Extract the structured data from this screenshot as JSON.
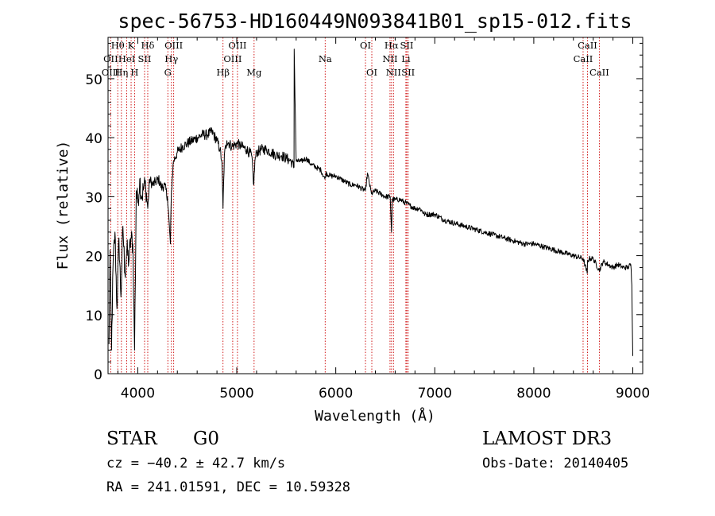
{
  "chart_data": {
    "type": "line",
    "title": "spec-56753-HD160449N093841B01_sp15-012.fits",
    "xlabel": "Wavelength (Å)",
    "ylabel": "Flux (relative)",
    "xlim": [
      3700,
      9100
    ],
    "ylim": [
      0,
      57
    ],
    "x_ticks": [
      4000,
      5000,
      6000,
      7000,
      8000,
      9000
    ],
    "x_tick_labels": [
      "4000",
      "5000",
      "6000",
      "7000",
      "8000",
      "9000"
    ],
    "y_ticks": [
      0,
      10,
      20,
      30,
      40,
      50
    ],
    "y_tick_labels": [
      "0",
      "10",
      "20",
      "30",
      "40",
      "50"
    ],
    "series": [
      {
        "name": "flux",
        "x": [
          3710,
          3720,
          3735,
          3750,
          3770,
          3790,
          3810,
          3830,
          3850,
          3870,
          3890,
          3910,
          3930,
          3950,
          3968,
          3985,
          4000,
          4020,
          4040,
          4060,
          4080,
          4101,
          4120,
          4150,
          4180,
          4210,
          4240,
          4270,
          4300,
          4330,
          4340,
          4360,
          4400,
          4450,
          4500,
          4550,
          4600,
          4650,
          4700,
          4750,
          4800,
          4830,
          4850,
          4861,
          4875,
          4900,
          4950,
          5000,
          5050,
          5100,
          5150,
          5172,
          5183,
          5200,
          5250,
          5300,
          5350,
          5400,
          5450,
          5500,
          5550,
          5578,
          5580,
          5600,
          5650,
          5700,
          5750,
          5800,
          5850,
          5890,
          5900,
          5950,
          6000,
          6050,
          6100,
          6150,
          6200,
          6250,
          6300,
          6320,
          6360,
          6400,
          6450,
          6500,
          6550,
          6563,
          6570,
          6600,
          6650,
          6700,
          6750,
          6800,
          6850,
          6900,
          6950,
          7000,
          7100,
          7200,
          7300,
          7400,
          7500,
          7600,
          7700,
          7800,
          7900,
          8000,
          8100,
          8200,
          8300,
          8400,
          8498,
          8540,
          8542,
          8560,
          8600,
          8662,
          8700,
          8750,
          8800,
          8850,
          8900,
          8950,
          8980,
          8990,
          9000
        ],
        "values": [
          5,
          21,
          4,
          18,
          24,
          11,
          23,
          13,
          25,
          17,
          21,
          19,
          23,
          22,
          4,
          31,
          29,
          33,
          30,
          31.5,
          32,
          28,
          33,
          32,
          32.5,
          33,
          31.5,
          32,
          30,
          22,
          31,
          36,
          37.5,
          38.5,
          39,
          39.5,
          40,
          40.5,
          40.5,
          41,
          39.5,
          38,
          36,
          28,
          37,
          39.5,
          38.5,
          39,
          38.5,
          38,
          37,
          32,
          36,
          37.5,
          38,
          38,
          37.5,
          37,
          37,
          36.5,
          36,
          35,
          55,
          36,
          36,
          36.5,
          35.5,
          35,
          34.5,
          33,
          34,
          33.5,
          33.5,
          33,
          32.5,
          32,
          32,
          31.5,
          31,
          34,
          30.5,
          31,
          30.5,
          30,
          30,
          24,
          29.5,
          29.5,
          29.5,
          29,
          28.5,
          28,
          28,
          27,
          27,
          27,
          26,
          25.5,
          25,
          24.5,
          24,
          23.5,
          23,
          22.5,
          22,
          22,
          21.5,
          21,
          20.5,
          20,
          19.5,
          17,
          19,
          19.5,
          19.5,
          17.5,
          19,
          18.5,
          18,
          18.5,
          18,
          18,
          18.5,
          15,
          3
        ]
      }
    ],
    "line_labels": {
      "top": [
        {
          "text": "Hθ",
          "x": 3798
        },
        {
          "text": "K",
          "x": 3933
        },
        {
          "text": "Hδ",
          "x": 4101
        },
        {
          "text": "OIII",
          "x": 4363
        },
        {
          "text": "OIII",
          "x": 5007
        },
        {
          "text": "OI",
          "x": 6300
        },
        {
          "text": "Hα",
          "x": 6563
        },
        {
          "text": "SII",
          "x": 6717
        },
        {
          "text": "CaII",
          "x": 8542
        }
      ],
      "mid": [
        {
          "text": "OII",
          "x": 3727
        },
        {
          "text": "HeI",
          "x": 3889
        },
        {
          "text": "SII",
          "x": 4069
        },
        {
          "text": "Hγ",
          "x": 4340
        },
        {
          "text": "OIII",
          "x": 4959
        },
        {
          "text": "Na",
          "x": 5893
        },
        {
          "text": "NII",
          "x": 6548
        },
        {
          "text": "Li",
          "x": 6708
        },
        {
          "text": "CaII",
          "x": 8498
        }
      ],
      "low": [
        {
          "text": "OIII",
          "x": 3727
        },
        {
          "text": "Hη",
          "x": 3835
        },
        {
          "text": "H",
          "x": 3968
        },
        {
          "text": "G",
          "x": 4304
        },
        {
          "text": "Hβ",
          "x": 4861
        },
        {
          "text": "Mg",
          "x": 5175
        },
        {
          "text": "OI",
          "x": 6364
        },
        {
          "text": "NII",
          "x": 6583
        },
        {
          "text": "SII",
          "x": 6731
        },
        {
          "text": "CaII",
          "x": 8662
        }
      ]
    },
    "reference_lines": [
      3727,
      3798,
      3835,
      3889,
      3933,
      3968,
      4069,
      4101,
      4304,
      4340,
      4363,
      4861,
      4959,
      5007,
      5175,
      5893,
      6300,
      6364,
      6548,
      6563,
      6583,
      6708,
      6717,
      6731,
      8498,
      8542,
      8662
    ]
  },
  "info": {
    "class": "STAR",
    "subclass": "G0",
    "survey": "LAMOST DR3",
    "cz": "cz = −40.2 ± 42.7 km/s",
    "obs_date": "Obs-Date: 20140405",
    "radec": "RA = 241.01591, DEC =  10.59328"
  },
  "colors": {
    "line": "#000000",
    "reference_line": "#cc0000",
    "background": "#ffffff"
  }
}
